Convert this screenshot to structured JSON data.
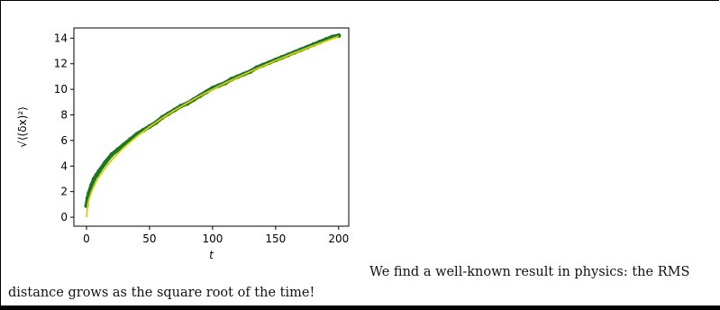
{
  "paragraph": {
    "line1": "We find a well-known result in physics: the RMS",
    "line2": "distance grows as the square root of the time!"
  },
  "chart_data": {
    "type": "line",
    "title": "",
    "xlabel": "t",
    "ylabel": "√⟨(δx)²⟩",
    "xlim": [
      -10,
      208
    ],
    "ylim": [
      -0.7,
      14.8
    ],
    "xticks": [
      0,
      50,
      100,
      150,
      200
    ],
    "yticks": [
      0,
      2,
      4,
      6,
      8,
      10,
      12,
      14
    ],
    "grid": false,
    "series": [
      {
        "style": "dots",
        "color": "#1a7a1a",
        "x": [
          0,
          1,
          2,
          4,
          6,
          8,
          10,
          15,
          20,
          25,
          30,
          35,
          40,
          45,
          50,
          55,
          60,
          65,
          70,
          75,
          80,
          85,
          90,
          95,
          100,
          105,
          110,
          115,
          120,
          125,
          130,
          135,
          140,
          145,
          150,
          155,
          160,
          165,
          170,
          175,
          180,
          185,
          190,
          195,
          200
        ],
        "y": [
          0.9,
          1.5,
          1.9,
          2.5,
          3.0,
          3.3,
          3.6,
          4.3,
          4.9,
          5.3,
          5.7,
          6.1,
          6.5,
          6.8,
          7.1,
          7.4,
          7.8,
          8.1,
          8.4,
          8.7,
          8.9,
          9.2,
          9.5,
          9.8,
          10.1,
          10.3,
          10.5,
          10.8,
          11.0,
          11.2,
          11.4,
          11.7,
          11.9,
          12.1,
          12.3,
          12.5,
          12.7,
          12.9,
          13.1,
          13.3,
          13.5,
          13.7,
          13.9,
          14.1,
          14.2
        ]
      },
      {
        "style": "line",
        "color": "#e3c515",
        "formula": "sqrt(t)",
        "x": [
          0,
          1,
          2,
          4,
          6,
          8,
          10,
          15,
          20,
          25,
          30,
          40,
          50,
          60,
          70,
          80,
          90,
          100,
          110,
          120,
          130,
          140,
          150,
          160,
          170,
          180,
          190,
          200
        ],
        "y": [
          0,
          1.0,
          1.41,
          2.0,
          2.45,
          2.83,
          3.16,
          3.87,
          4.47,
          5.0,
          5.48,
          6.32,
          7.07,
          7.75,
          8.37,
          8.94,
          9.49,
          10.0,
          10.49,
          10.95,
          11.4,
          11.83,
          12.25,
          12.65,
          13.04,
          13.42,
          13.78,
          14.14
        ]
      }
    ]
  }
}
